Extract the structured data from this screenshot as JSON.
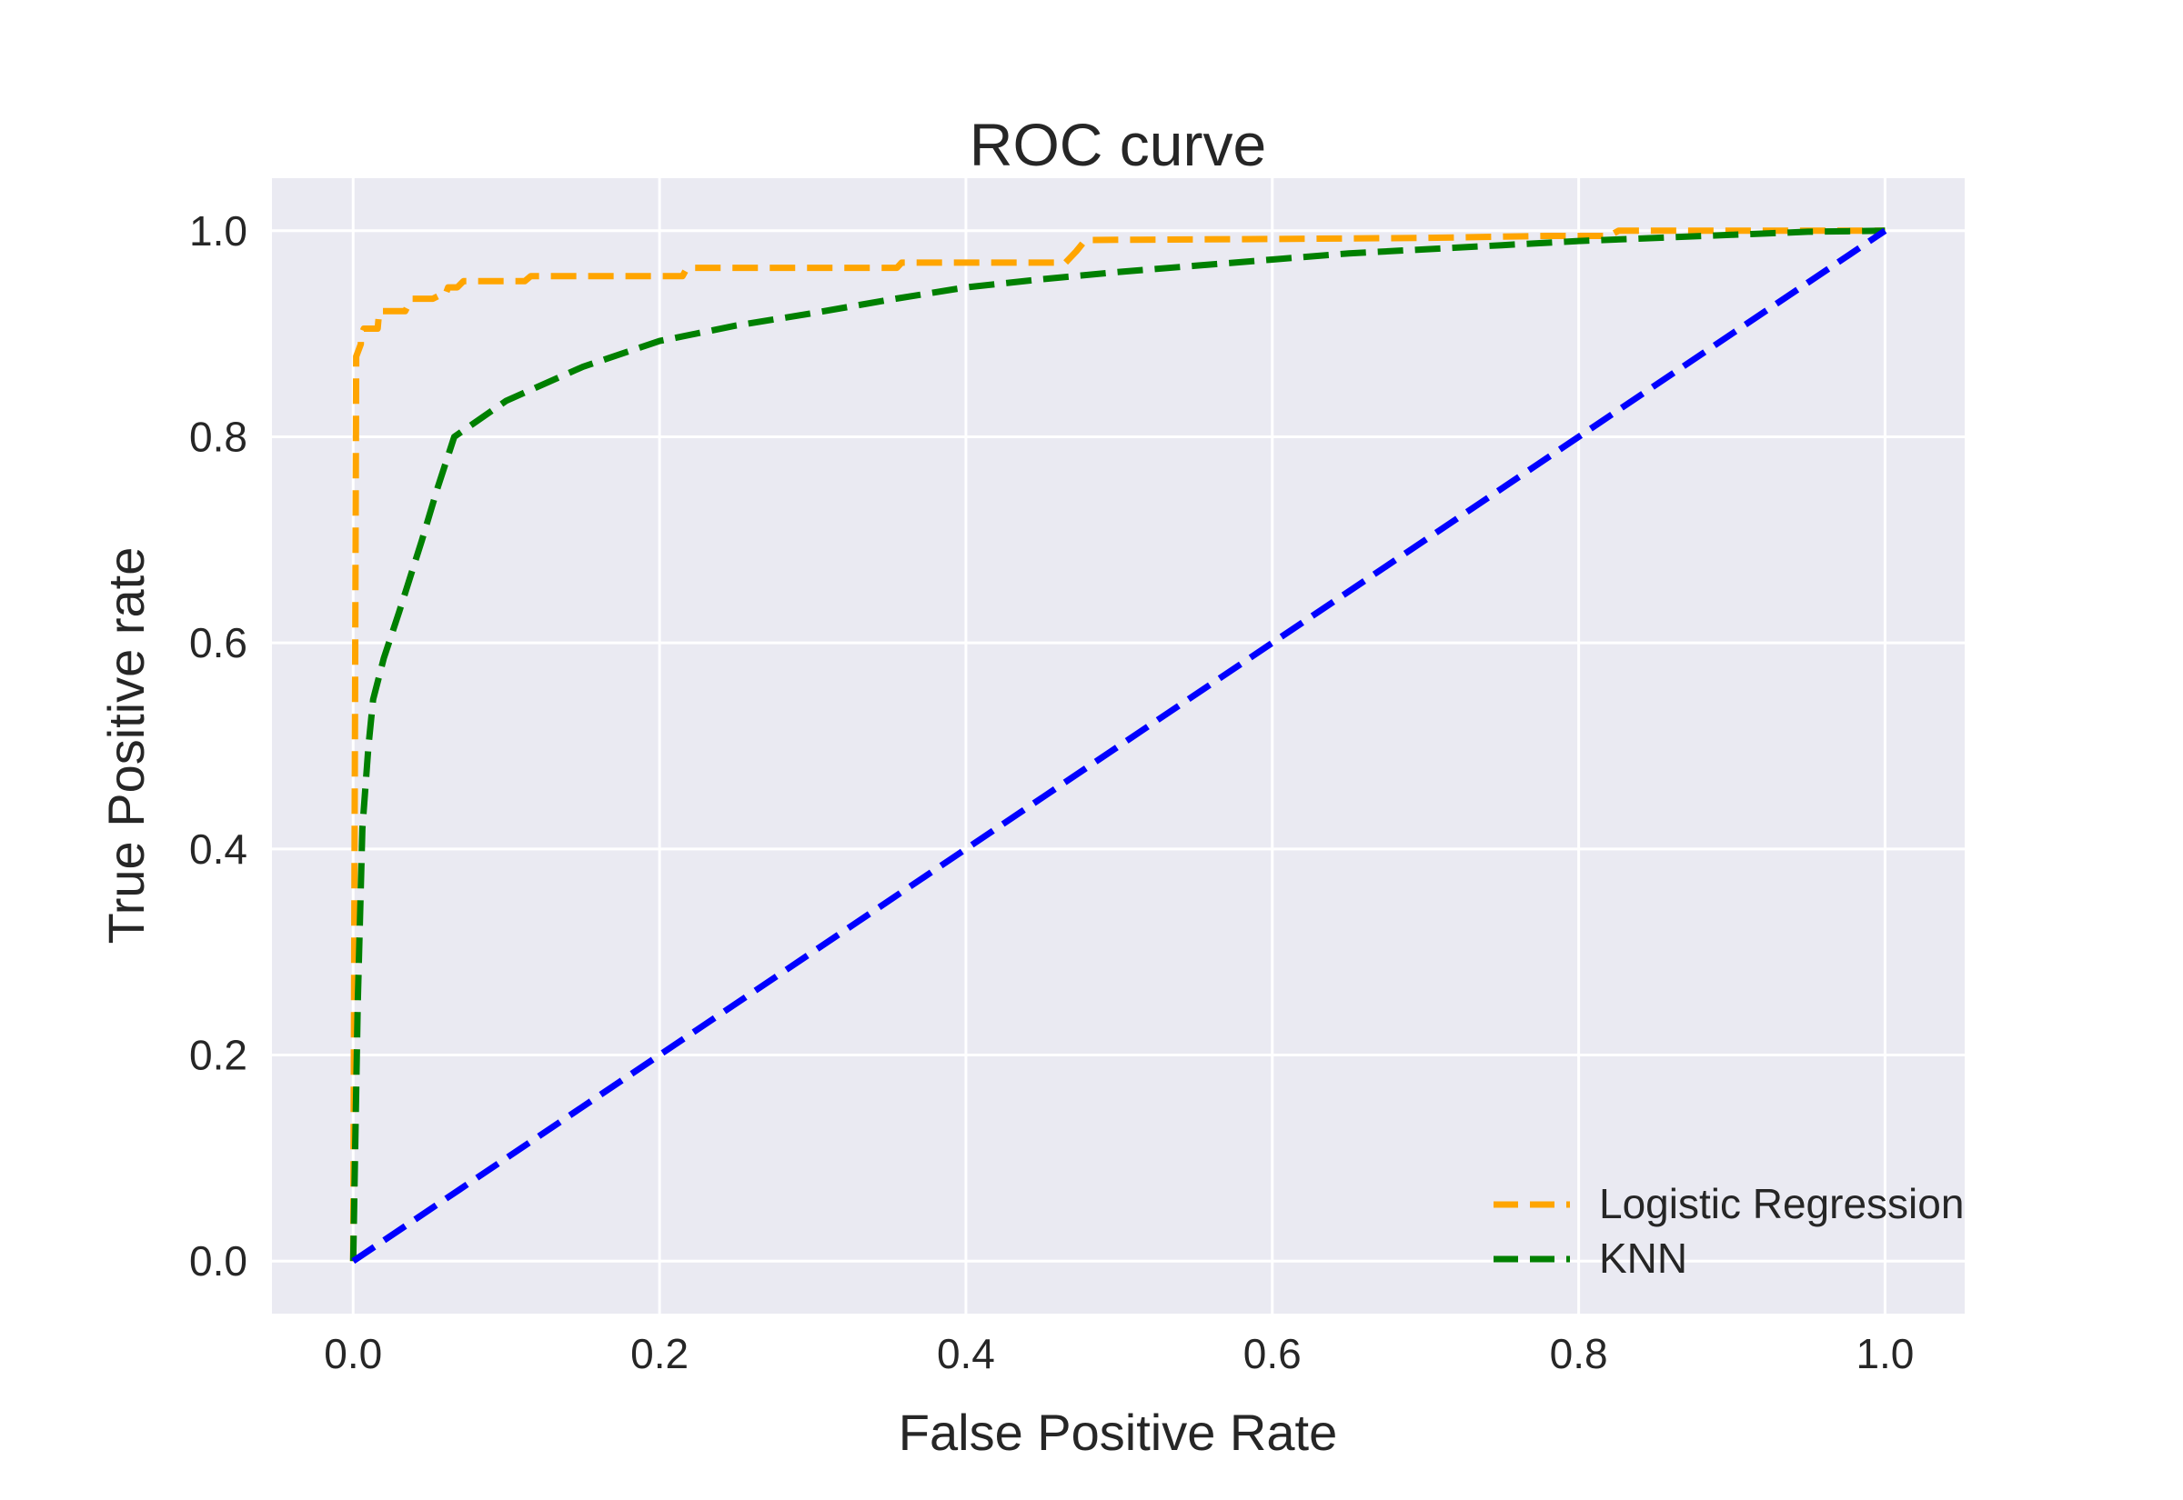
{
  "figure": {
    "background": "#ffffff",
    "plot_background": "#eaeaf2",
    "grid_color": "#ffffff",
    "text_color": "#262626"
  },
  "title": "ROC curve",
  "axes": {
    "xlabel": "False Positive Rate",
    "ylabel": "True Positive rate",
    "x_tick_labels": [
      "0.0",
      "0.2",
      "0.4",
      "0.6",
      "0.8",
      "1.0"
    ],
    "y_tick_labels": [
      "0.0",
      "0.2",
      "0.4",
      "0.6",
      "0.8",
      "1.0"
    ]
  },
  "legend": {
    "entries": [
      {
        "label": "Logistic Regression",
        "color": "#ffa500"
      },
      {
        "label": "KNN",
        "color": "#008000"
      }
    ]
  },
  "chart_data": {
    "type": "line",
    "title": "ROC curve",
    "xlabel": "False Positive Rate",
    "ylabel": "True Positive rate",
    "xlim": [
      -0.053,
      1.052
    ],
    "ylim": [
      -0.051,
      1.051
    ],
    "x_ticks": [
      0,
      0.2,
      0.4,
      0.6,
      0.8,
      1.0
    ],
    "y_ticks": [
      0,
      0.2,
      0.4,
      0.6,
      0.8,
      1.0
    ],
    "grid": true,
    "grid_style": "seaborn-darkgrid",
    "legend_position": "lower right",
    "line_style": "dashed",
    "series": [
      {
        "name": "Logistic Regression",
        "color": "#ffa500",
        "linestyle": "dashed",
        "in_legend": true,
        "x": [
          0,
          0.002,
          0.002,
          0.005,
          0.005,
          0.007,
          0.016,
          0.017,
          0.034,
          0.038,
          0.052,
          0.056,
          0.06,
          0.062,
          0.068,
          0.072,
          0.112,
          0.116,
          0.215,
          0.218,
          0.355,
          0.358,
          0.465,
          0.472,
          0.478,
          0.6,
          0.7,
          0.78,
          0.82,
          0.826,
          1.0
        ],
        "y": [
          0,
          0.875,
          0.878,
          0.89,
          0.898,
          0.905,
          0.905,
          0.922,
          0.922,
          0.934,
          0.934,
          0.937,
          0.937,
          0.945,
          0.945,
          0.951,
          0.951,
          0.956,
          0.956,
          0.964,
          0.964,
          0.969,
          0.969,
          0.98,
          0.991,
          0.992,
          0.993,
          0.995,
          0.995,
          1.0,
          1.0
        ]
      },
      {
        "name": "KNN",
        "color": "#008000",
        "linestyle": "dashed",
        "in_legend": true,
        "x": [
          0,
          0.003,
          0.006,
          0.01,
          0.013,
          0.02,
          0.03,
          0.045,
          0.055,
          0.066,
          0.1,
          0.15,
          0.2,
          0.25,
          0.3,
          0.35,
          0.4,
          0.45,
          0.5,
          0.55,
          0.6,
          0.65,
          0.7,
          0.75,
          0.8,
          0.85,
          0.9,
          0.95,
          1.0
        ],
        "y": [
          0,
          0.25,
          0.42,
          0.5,
          0.545,
          0.585,
          0.63,
          0.7,
          0.75,
          0.8,
          0.835,
          0.868,
          0.893,
          0.908,
          0.92,
          0.933,
          0.945,
          0.953,
          0.96,
          0.966,
          0.972,
          0.978,
          0.982,
          0.986,
          0.99,
          0.993,
          0.996,
          0.999,
          1.0
        ]
      },
      {
        "name": "chance-diagonal",
        "color": "#0000ff",
        "linestyle": "dashed",
        "in_legend": false,
        "x": [
          0,
          1
        ],
        "y": [
          0,
          1
        ]
      }
    ]
  }
}
